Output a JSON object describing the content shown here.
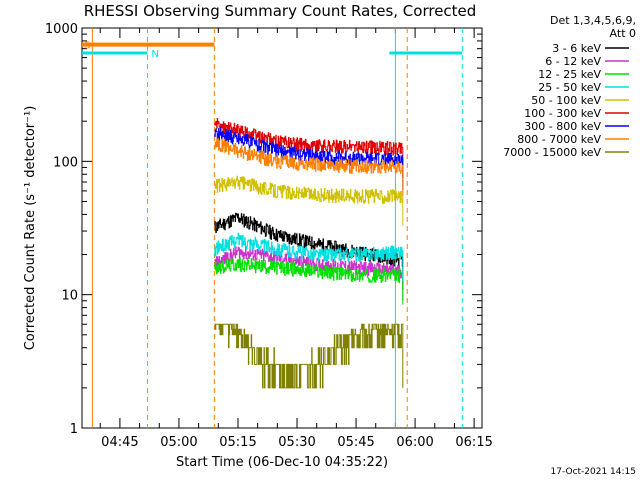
{
  "chart_data": {
    "type": "line",
    "title": "RHESSI Observing Summary Count Rates, Corrected",
    "xlabel": "Start Time (06-Dec-10 04:35:22)",
    "ylabel": "Corrected Count Rate (s⁻¹ detector⁻¹)",
    "y_scale": "log",
    "ylim": [
      1,
      1000
    ],
    "xlim": [
      "04:35:22",
      "06:17:00"
    ],
    "x_ticks": [
      "04:45",
      "05:00",
      "05:15",
      "05:30",
      "05:45",
      "06:00",
      "06:15"
    ],
    "y_ticks": [
      "1",
      "10",
      "100",
      "1000"
    ],
    "legend_header": [
      "Det 1,3,4,5,6,9,",
      "Att 0"
    ],
    "legend_position": "right",
    "footer": "17-Oct-2021 14:15",
    "series": [
      {
        "name": "3 - 6 keV",
        "color": "#000000",
        "x": [
          "05:09",
          "05:15",
          "05:25",
          "05:35",
          "05:45",
          "05:57"
        ],
        "values": [
          32,
          38,
          28,
          24,
          21,
          18
        ]
      },
      {
        "name": "6 - 12 keV",
        "color": "#cc33cc",
        "x": [
          "05:09",
          "05:15",
          "05:25",
          "05:35",
          "05:45",
          "05:57"
        ],
        "values": [
          17,
          21,
          19,
          17,
          16,
          15
        ]
      },
      {
        "name": "12 - 25 keV",
        "color": "#00e000",
        "x": [
          "05:09",
          "05:15",
          "05:25",
          "05:35",
          "05:45",
          "05:57"
        ],
        "values": [
          16,
          17,
          16,
          15,
          14,
          14
        ]
      },
      {
        "name": "25 - 50 keV",
        "color": "#00e0e0",
        "x": [
          "05:09",
          "05:15",
          "05:25",
          "05:35",
          "05:45",
          "05:57"
        ],
        "values": [
          22,
          26,
          22,
          20,
          20,
          21
        ]
      },
      {
        "name": "50 - 100 keV",
        "color": "#d0c000",
        "x": [
          "05:09",
          "05:15",
          "05:25",
          "05:35",
          "05:45",
          "05:57"
        ],
        "values": [
          65,
          70,
          60,
          56,
          55,
          55
        ]
      },
      {
        "name": "100 - 300 keV",
        "color": "#e00000",
        "x": [
          "05:09",
          "05:15",
          "05:25",
          "05:35",
          "05:45",
          "05:57"
        ],
        "values": [
          190,
          170,
          140,
          130,
          128,
          125
        ]
      },
      {
        "name": "300 - 800 keV",
        "color": "#0000ff",
        "x": [
          "05:09",
          "05:15",
          "05:25",
          "05:35",
          "05:45",
          "05:57"
        ],
        "values": [
          165,
          150,
          120,
          110,
          105,
          102
        ]
      },
      {
        "name": "800 - 7000 keV",
        "color": "#ff7f00",
        "x": [
          "05:09",
          "05:15",
          "05:25",
          "05:35",
          "05:45",
          "05:57"
        ],
        "values": [
          140,
          120,
          100,
          95,
          92,
          92
        ]
      },
      {
        "name": "7000 - 15000 keV",
        "color": "#808000",
        "x": [
          "05:09",
          "05:15",
          "05:22",
          "05:30",
          "05:38",
          "05:46",
          "05:57"
        ],
        "values": [
          7,
          5,
          3,
          2.5,
          3.5,
          5,
          5.5
        ]
      }
    ],
    "annotations": {
      "saa_label": "S",
      "night_label": "N",
      "saa_bars": [
        {
          "start": "04:35:22",
          "end": "05:09"
        }
      ],
      "night_bars": [
        {
          "start": "04:35:22",
          "end": "04:52"
        },
        {
          "start": "05:55",
          "end": "06:12"
        }
      ],
      "bar_values": {
        "saa": 750,
        "night": 650
      },
      "saa_lines": [
        "04:38",
        "05:09",
        "05:58"
      ],
      "night_lines": [
        "04:52",
        "05:55",
        "06:12"
      ]
    }
  }
}
